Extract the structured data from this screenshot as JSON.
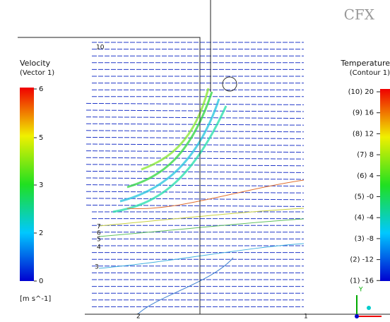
{
  "logo": "CFX",
  "velocity": {
    "title": "Velocity",
    "subtitle": "(Vector 1)",
    "ticks": [
      "6",
      "5",
      "3",
      "2",
      "0"
    ],
    "unit": "[m s^-1]"
  },
  "temperature": {
    "title": "Temperature",
    "subtitle": "(Contour 1)",
    "ticks": [
      "(10) 20",
      "(9) 16",
      "(8) 12",
      "(7) 8",
      "(6) 4",
      "(5) -0",
      "(4) -4",
      "(3) -8",
      "(2) -12",
      "(1) -16"
    ]
  },
  "contour_labels": [
    "10",
    "7",
    "6",
    "5",
    "4",
    "3",
    "2",
    "1"
  ],
  "axis": "Y"
}
